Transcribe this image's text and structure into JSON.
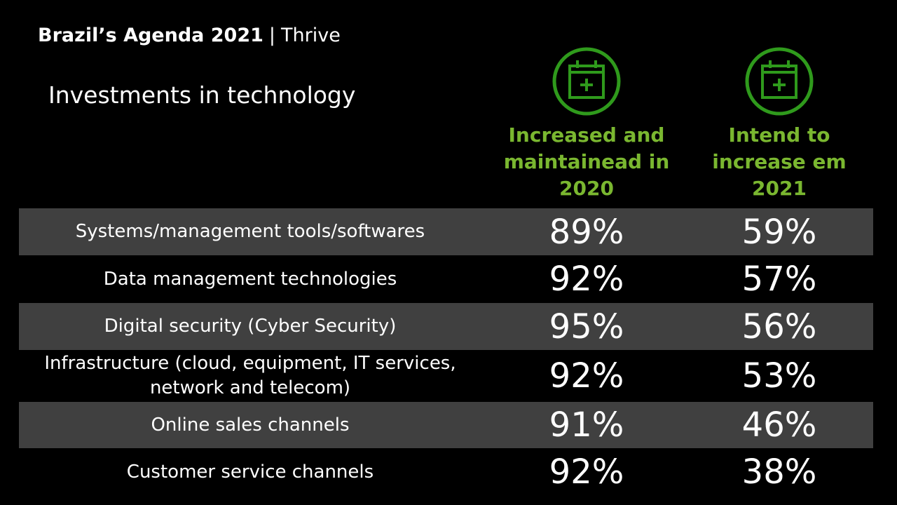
{
  "header": {
    "brand": "Brazil’s Agenda 2021",
    "separator": "|",
    "subtitle": "Thrive"
  },
  "title": "Investments in technology",
  "colors": {
    "background": "#000000",
    "accent_green": "#7ab730",
    "row_shade": "#404040",
    "text": "#ffffff"
  },
  "columns": [
    {
      "icon": "calendar-plus-icon",
      "label": "Increased and\nmaintainead in\n2020"
    },
    {
      "icon": "calendar-plus-icon",
      "label": "Intend to\nincrease em\n2021"
    }
  ],
  "chart_data": {
    "type": "table",
    "title": "Investments in technology",
    "columns": [
      "Increased and maintainead in 2020",
      "Intend to increase em 2021"
    ],
    "rows": [
      {
        "category": "Systems/management tools/softwares",
        "values": [
          "89%",
          "59%"
        ]
      },
      {
        "category": "Data management technologies",
        "values": [
          "92%",
          "57%"
        ]
      },
      {
        "category": "Digital security (Cyber Security)",
        "values": [
          "95%",
          "56%"
        ]
      },
      {
        "category": "Infrastructure (cloud, equipment, IT services,\nnetwork and telecom)",
        "values": [
          "92%",
          "53%"
        ]
      },
      {
        "category": "Online sales channels",
        "values": [
          "91%",
          "46%"
        ]
      },
      {
        "category": "Customer service channels",
        "values": [
          "92%",
          "38%"
        ]
      }
    ]
  }
}
